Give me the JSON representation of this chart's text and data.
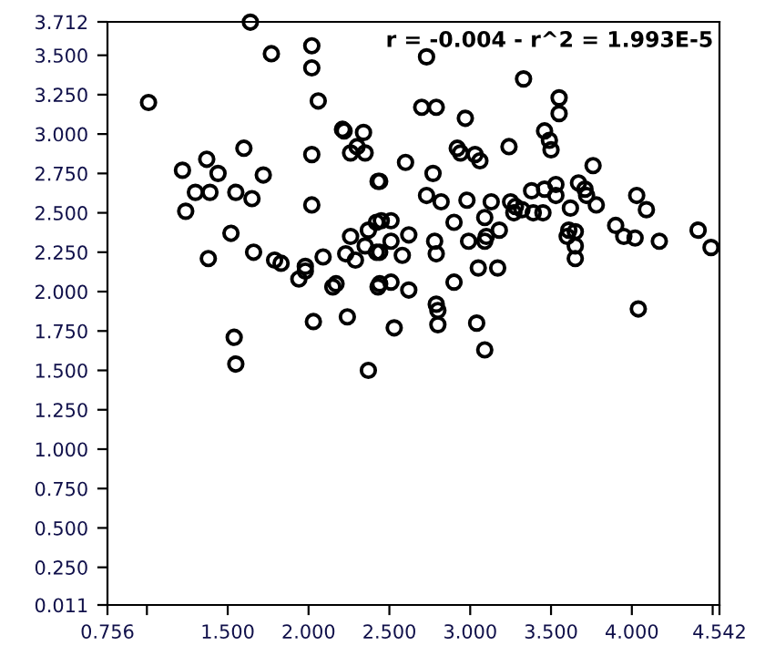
{
  "chart_data": {
    "type": "scatter",
    "annotations": [
      "r = -0.004 - r^2 = 1.993E-5"
    ],
    "xlim": [
      0.756,
      4.542
    ],
    "ylim": [
      0.011,
      3.712
    ],
    "xticks": [
      0.756,
      {
        "value": 1.0,
        "label": null
      },
      {
        "value": 1.5,
        "label": "1.500"
      },
      {
        "value": 2.0,
        "label": "2.000"
      },
      {
        "value": 2.5,
        "label": "2.500"
      },
      {
        "value": 3.0,
        "label": "3.000"
      },
      {
        "value": 3.5,
        "label": "3.500"
      },
      {
        "value": 4.0,
        "label": "4.000"
      },
      {
        "value": 4.5,
        "label": null
      },
      4.542
    ],
    "yticks": [
      0.011,
      {
        "value": 0.25,
        "label": "0.250"
      },
      {
        "value": 0.5,
        "label": "0.500"
      },
      {
        "value": 0.75,
        "label": "0.750"
      },
      {
        "value": 1.0,
        "label": "1.000"
      },
      {
        "value": 1.25,
        "label": "1.250"
      },
      {
        "value": 1.5,
        "label": "1.500"
      },
      {
        "value": 1.75,
        "label": "1.750"
      },
      {
        "value": 2.0,
        "label": "2.000"
      },
      {
        "value": 2.25,
        "label": "2.250"
      },
      {
        "value": 2.5,
        "label": "2.500"
      },
      {
        "value": 2.75,
        "label": "2.750"
      },
      {
        "value": 3.0,
        "label": "3.000"
      },
      {
        "value": 3.25,
        "label": "3.250"
      },
      {
        "value": 3.5,
        "label": "3.500"
      },
      3.712
    ],
    "marker": "circle",
    "grid": false,
    "legend": false,
    "series": [
      {
        "color": "#000000",
        "x": [
          1.01,
          1.22,
          1.24,
          1.3,
          1.37,
          1.39,
          1.44,
          1.38,
          1.52,
          1.55,
          1.6,
          1.66,
          1.65,
          1.72,
          1.64,
          1.77,
          2.02,
          2.02,
          2.06,
          2.21,
          2.22,
          2.34,
          2.3,
          2.26,
          2.35,
          2.43,
          2.02,
          2.02,
          1.79,
          1.83,
          1.94,
          1.98,
          1.98,
          2.09,
          2.15,
          2.17,
          2.23,
          2.29,
          2.26,
          2.37,
          2.35,
          2.42,
          2.42,
          2.43,
          2.03,
          2.24,
          1.54,
          1.55,
          2.37,
          2.53,
          2.8,
          2.8,
          3.04,
          3.09,
          4.04,
          2.73,
          3.33,
          3.55,
          3.55,
          2.7,
          2.79,
          2.97,
          3.46,
          3.49,
          3.5,
          3.24,
          2.92,
          2.94,
          3.03,
          3.06,
          2.6,
          2.77,
          2.44,
          3.76,
          2.73,
          2.82,
          2.98,
          3.13,
          3.25,
          3.28,
          3.38,
          3.46,
          3.53,
          3.53,
          3.67,
          3.71,
          3.72,
          3.78,
          3.62,
          3.09,
          3.32,
          3.39,
          3.45,
          3.27,
          2.9,
          2.45,
          2.51,
          2.62,
          2.51,
          2.78,
          2.79,
          2.99,
          3.09,
          3.1,
          3.18,
          3.61,
          3.65,
          3.6,
          3.65,
          3.65,
          3.9,
          3.95,
          4.02,
          4.03,
          4.09,
          4.17,
          4.41,
          4.49,
          2.44,
          2.58,
          3.05,
          3.17,
          2.44,
          2.51,
          2.62,
          2.9,
          2.79
        ],
        "values": [
          3.2,
          2.77,
          2.51,
          2.63,
          2.84,
          2.63,
          2.75,
          2.21,
          2.37,
          2.63,
          2.91,
          2.25,
          2.59,
          2.74,
          3.71,
          3.51,
          3.56,
          3.42,
          3.21,
          3.03,
          3.02,
          3.01,
          2.92,
          2.88,
          2.88,
          2.7,
          2.87,
          2.55,
          2.2,
          2.18,
          2.08,
          2.16,
          2.13,
          2.22,
          2.03,
          2.05,
          2.24,
          2.2,
          2.35,
          2.39,
          2.29,
          2.25,
          2.44,
          2.03,
          1.81,
          1.84,
          1.71,
          1.54,
          1.5,
          1.77,
          1.79,
          1.88,
          1.8,
          1.63,
          1.89,
          3.49,
          3.35,
          3.23,
          3.13,
          3.17,
          3.17,
          3.1,
          3.02,
          2.96,
          2.9,
          2.92,
          2.91,
          2.88,
          2.87,
          2.83,
          2.82,
          2.75,
          2.7,
          2.8,
          2.61,
          2.57,
          2.58,
          2.57,
          2.57,
          2.54,
          2.64,
          2.65,
          2.68,
          2.61,
          2.69,
          2.65,
          2.61,
          2.55,
          2.53,
          2.47,
          2.52,
          2.5,
          2.5,
          2.5,
          2.44,
          2.45,
          2.45,
          2.36,
          2.32,
          2.32,
          2.24,
          2.32,
          2.32,
          2.35,
          2.39,
          2.39,
          2.38,
          2.35,
          2.29,
          2.21,
          2.42,
          2.35,
          2.34,
          2.61,
          2.52,
          2.32,
          2.39,
          2.28,
          2.25,
          2.23,
          2.15,
          2.15,
          2.05,
          2.06,
          2.01,
          2.06,
          1.92
        ]
      }
    ]
  }
}
